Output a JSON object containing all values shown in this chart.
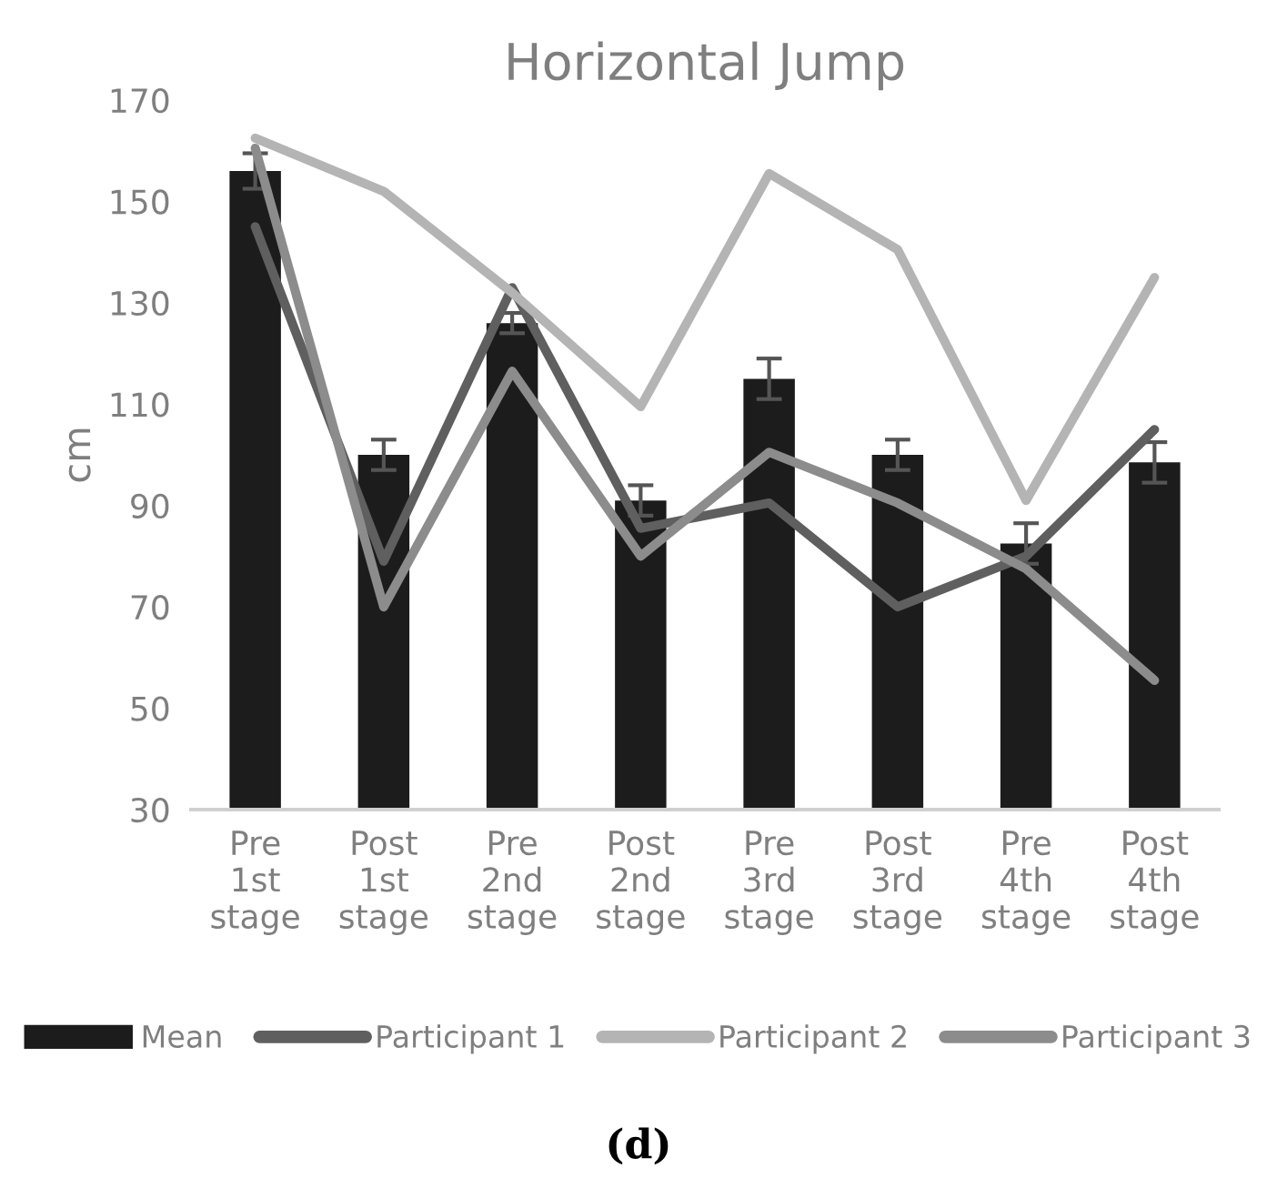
{
  "chart_data": {
    "type": "bar",
    "title": "Horizontal Jump",
    "ylabel": "cm",
    "categories": [
      "Pre 1st stage",
      "Post 1st stage",
      "Pre 2nd stage",
      "Post 2nd stage",
      "Pre 3rd stage",
      "Post 3rd stage",
      "Pre 4th stage",
      "Post 4th stage"
    ],
    "series": [
      {
        "name": "Mean",
        "color": "#1c1c1c",
        "values": [
          156,
          100,
          126,
          91,
          115,
          100,
          82.5,
          98.5
        ],
        "errors": [
          3.5,
          3,
          2,
          3,
          4,
          3,
          4,
          4
        ]
      },
      {
        "name": "Participant 1",
        "type": "line",
        "color": "#5f5f5f",
        "values": [
          145,
          79,
          133,
          85.5,
          90.5,
          70,
          80,
          105
        ]
      },
      {
        "name": "Participant 2",
        "type": "line",
        "color": "#b4b4b4",
        "values": [
          162.5,
          152,
          132,
          109.5,
          155.5,
          140.5,
          91,
          135
        ]
      },
      {
        "name": "Participant 3",
        "type": "line",
        "color": "#8c8c8c",
        "values": [
          160.5,
          70,
          116.5,
          80,
          100.5,
          90.5,
          77.5,
          55.5
        ]
      }
    ],
    "ylim": [
      30,
      170
    ],
    "yticks": [
      30,
      50,
      70,
      90,
      110,
      130,
      150,
      170
    ],
    "grid": false,
    "legend": "bottom",
    "line_style": "solid",
    "marker": "none",
    "annotations": [
      "(d)"
    ]
  }
}
